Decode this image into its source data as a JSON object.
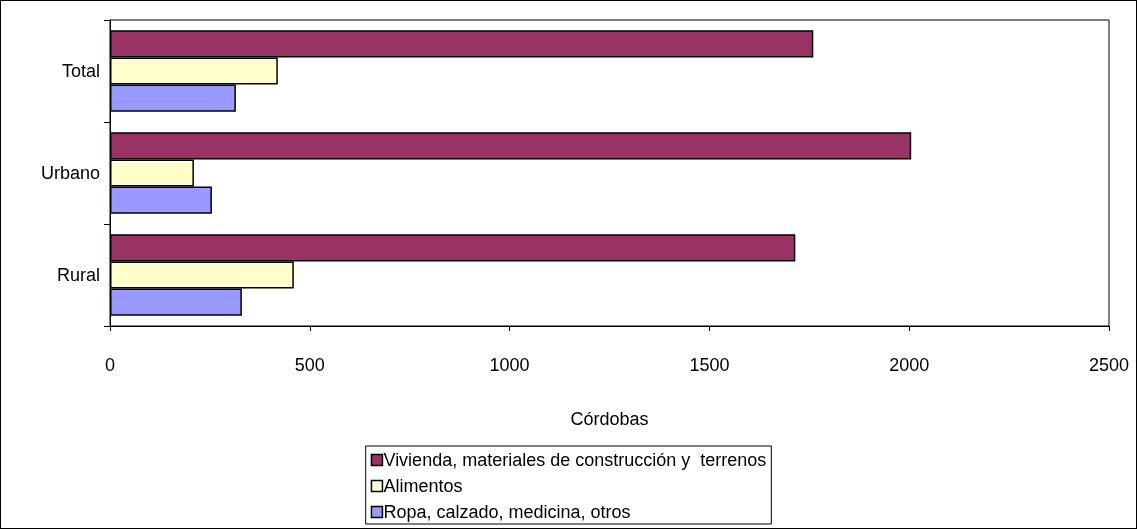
{
  "chart_data": {
    "type": "bar",
    "orientation": "horizontal",
    "xlabel": "Córdobas",
    "categories": [
      "Total",
      "Urbano",
      "Rural"
    ],
    "series": [
      {
        "name": "Vivienda, materiales de construcción y  terrenos",
        "color": "#993366",
        "values": [
          1760,
          2005,
          1715
        ]
      },
      {
        "name": "Alimentos",
        "color": "#ffffcc",
        "values": [
          420,
          210,
          460
        ]
      },
      {
        "name": "Ropa, calzado, medicina, otros",
        "color": "#9999ff",
        "values": [
          315,
          255,
          330
        ]
      }
    ],
    "xlim": [
      0,
      2500
    ],
    "xticks": [
      0,
      500,
      1000,
      1500,
      2000,
      2500
    ],
    "grid": false,
    "legend": "bottom"
  }
}
